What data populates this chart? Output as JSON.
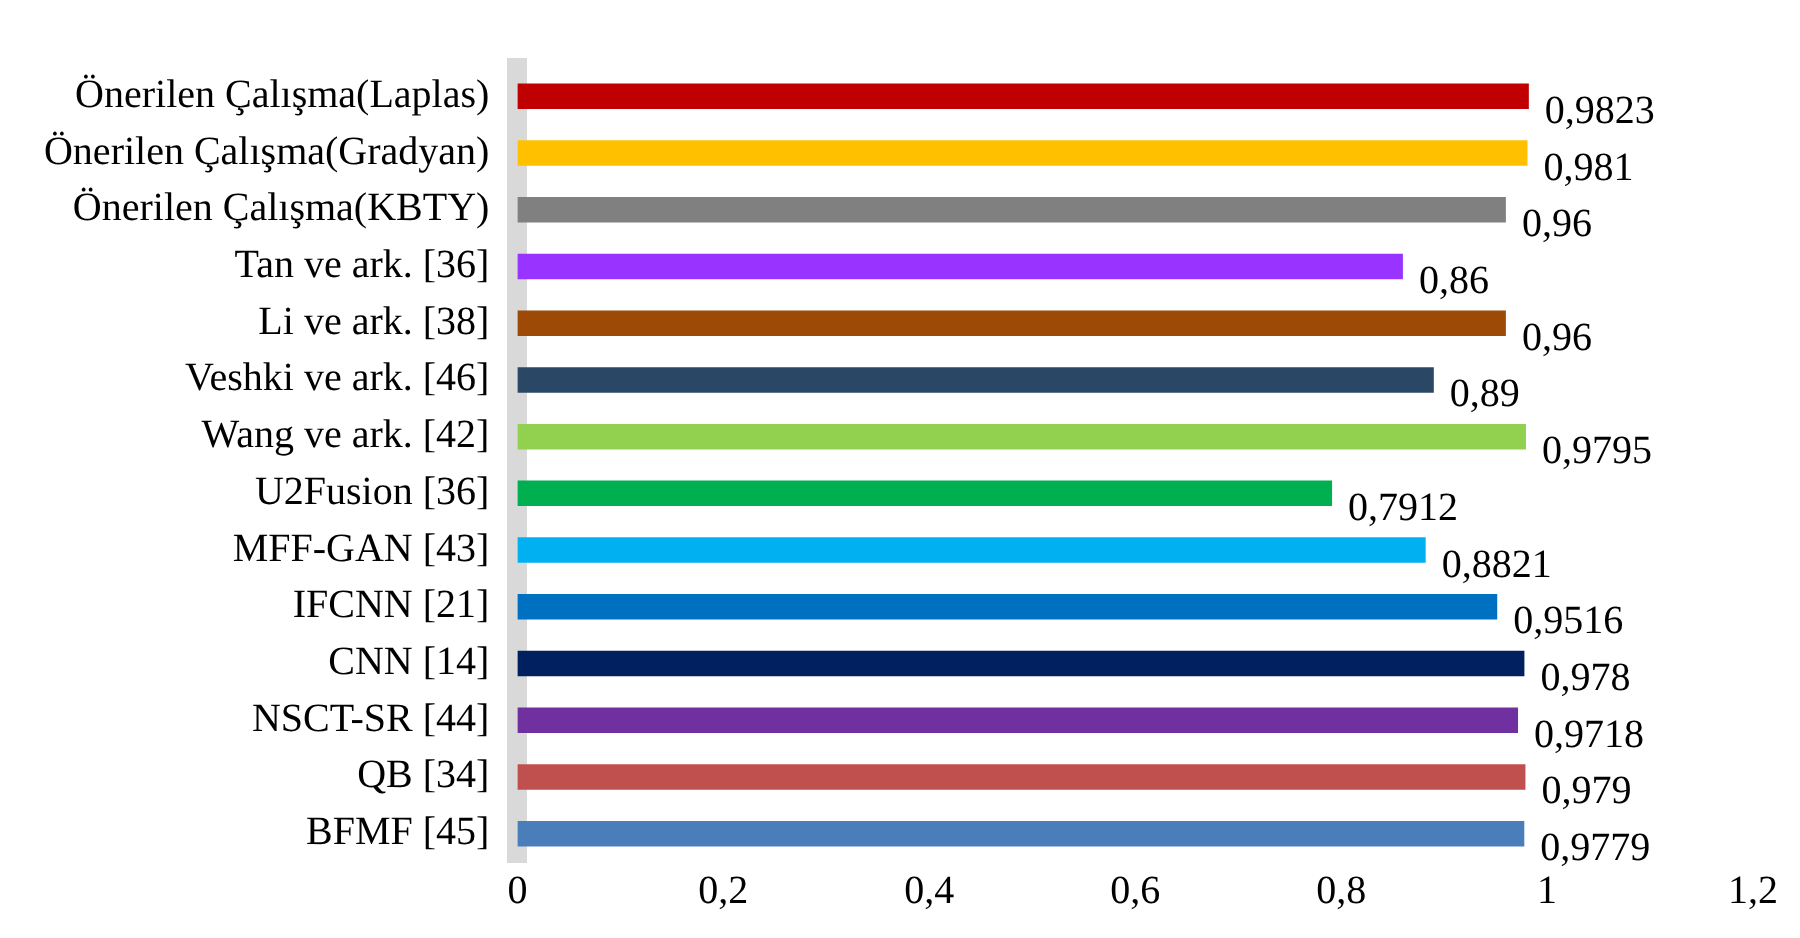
{
  "chart_data": {
    "type": "bar",
    "orientation": "horizontal",
    "categories": [
      "Önerilen Çalışma(Laplas)",
      "Önerilen Çalışma(Gradyan)",
      "Önerilen Çalışma(KBTY)",
      "Tan ve ark. [36]",
      "Li ve ark. [38]",
      "Veshki ve ark. [46]",
      "Wang ve ark. [42]",
      "U2Fusion [36]",
      "MFF-GAN [43]",
      "IFCNN [21]",
      "CNN [14]",
      "NSCT-SR [44]",
      "QB [34]",
      "BFMF [45]"
    ],
    "values": [
      0.9823,
      0.981,
      0.96,
      0.86,
      0.96,
      0.89,
      0.9795,
      0.7912,
      0.8821,
      0.9516,
      0.978,
      0.9718,
      0.979,
      0.9779
    ],
    "value_labels": [
      "0,9823",
      "0,981",
      "0,96",
      "0,86",
      "0,96",
      "0,89",
      "0,9795",
      "0,7912",
      "0,8821",
      "0,9516",
      "0,978",
      "0,9718",
      "0,979",
      "0,9779"
    ],
    "colors": [
      "#c00000",
      "#ffc000",
      "#808080",
      "#9933ff",
      "#9c4a06",
      "#2a4766",
      "#92d050",
      "#00b050",
      "#00b0f0",
      "#0070c0",
      "#002060",
      "#7030a0",
      "#c0504d",
      "#4a7ebb"
    ],
    "xlim": [
      0,
      1.2
    ],
    "xticks": [
      0,
      {
        "value": 0.2,
        "label": "0,2"
      },
      {
        "value": 0.4,
        "label": "0,4"
      },
      {
        "value": 0.6,
        "label": "0,6"
      },
      {
        "value": 0.8,
        "label": "0,8"
      },
      1,
      {
        "value": 1.2,
        "label": "1,2"
      }
    ],
    "grid": false,
    "legend": false
  }
}
